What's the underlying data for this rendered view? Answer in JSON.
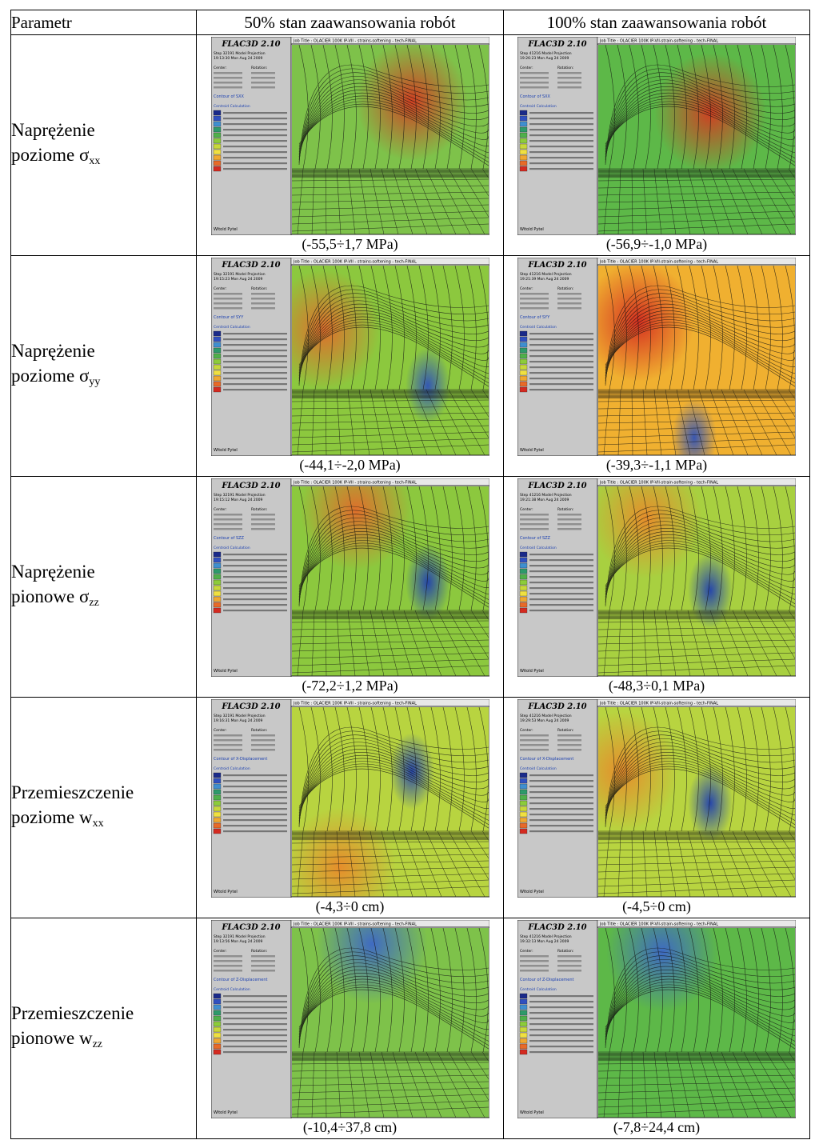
{
  "table": {
    "headers": [
      "Parametr",
      "50% stan zaawansowania robót",
      "100% stan zaawansowania robót"
    ],
    "rows": [
      {
        "line1": "Naprężenie",
        "line2_text": "poziome σ",
        "line2_sub": "xx",
        "left": {
          "cap": "(-55,5÷1,7 MPa)",
          "step": "Step 32191 Model Projection",
          "date": "19:13:30 Mon Aug 24 2009",
          "jobtitle": "Job Title : OLACIER 100K IP-VII - strains-softening - tech-FINAL",
          "contour": "Contour of SXX"
        },
        "right": {
          "cap": "(-56,9÷-1,0 MPa)",
          "step": "Step 41216 Model Projection",
          "date": "19:26:23 Mon Aug 24 2009",
          "jobtitle": "Job Title : OLACIER 100K IP-VII-strain-softening - tech-FINAL",
          "contour": "Contour of SXX"
        }
      },
      {
        "line1": "Naprężenie",
        "line2_text": "poziome σ",
        "line2_sub": "yy",
        "left": {
          "cap": "(-44,1÷-2,0 MPa)",
          "step": "Step 32191 Model Projection",
          "date": "19:15:23 Mon Aug 24 2009",
          "jobtitle": "Job Title : OLACIER 100K IP-VII - strains-softening - tech-FINAL",
          "contour": "Contour of SYY"
        },
        "right": {
          "cap": "(-39,3÷-1,1 MPa)",
          "step": "Step 41216 Model Projection",
          "date": "19:21:39 Mon Aug 24 2009",
          "jobtitle": "Job Title : OLACIER 100K IP-VII-strain-softening - tech-FINAL",
          "contour": "Contour of SYY"
        }
      },
      {
        "line1": "Naprężenie",
        "line2_text": "pionowe σ",
        "line2_sub": "zz",
        "left": {
          "cap": "(-72,2÷1,2 MPa)",
          "step": "Step 32191 Model Projection",
          "date": "19:15:12 Mon Aug 24 2009",
          "jobtitle": "Job Title : OLACIER 100K IP-VII - strains-softening - tech-FINAL",
          "contour": "Contour of SZZ"
        },
        "right": {
          "cap": "(-48,3÷0,1 MPa)",
          "step": "Step 41216 Model Projection",
          "date": "19:21:38 Mon Aug 24 2009",
          "jobtitle": "Job Title : OLACIER 100K IP-VII-strain-softening - tech-FINAL",
          "contour": "Contour of SZZ"
        }
      },
      {
        "line1": "Przemieszczenie",
        "line2_text": "poziome w",
        "line2_sub": "xx",
        "left": {
          "cap": "(-4,3÷0 cm)",
          "step": "Step 32191 Model Projection",
          "date": "19:16:31 Mon Aug 24 2009",
          "jobtitle": "Job Title : OLACIER 100K IP-VII - strains-softening - tech-FINAL",
          "contour": "Contour of X-Displacement"
        },
        "right": {
          "cap": "(-4,5÷0 cm)",
          "step": "Step 41216 Model Projection",
          "date": "19:29:53 Mon Aug 24 2009",
          "jobtitle": "Job Title : OLACIER 100K IP-VII-strain-softening - tech-FINAL",
          "contour": "Contour of X-Displacement"
        }
      },
      {
        "line1": "Przemieszczenie",
        "line2_text": "pionowe w",
        "line2_sub": "zz",
        "left": {
          "cap": "(-10,4÷37,8 cm)",
          "step": "Step 32191 Model Projection",
          "date": "19:13:56 Mon Aug 24 2009",
          "jobtitle": "Job Title : OLACIER 100K IP-VII - strains-softening - tech-FINAL",
          "contour": "Contour of Z-Displacement"
        },
        "right": {
          "cap": "(-7,8÷24,4 cm)",
          "step": "Step 41216 Model Projection",
          "date": "19:32:13 Mon Aug 24 2009",
          "jobtitle": "Job Title : OLACIER 100K IP-VII-strain-softening - tech-FINAL",
          "contour": "Contour of Z-Displacement"
        }
      }
    ]
  },
  "fig_common": {
    "software": "FLAC3D 2.10",
    "centroid": "Centroid Calculation",
    "author": "Witold Pytel",
    "center_label": "Center:",
    "rotation_label": "Rotation:"
  },
  "colors": {
    "legend_scale": [
      "#1a2a8a",
      "#3050c0",
      "#3f8fd0",
      "#2e9a6a",
      "#4fb04a",
      "#8ccc3a",
      "#c8d83a",
      "#f0e040",
      "#f0a830",
      "#e86a28",
      "#d42a20"
    ]
  }
}
